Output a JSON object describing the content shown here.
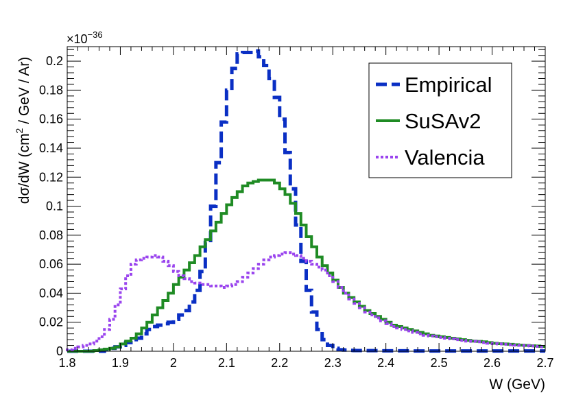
{
  "chart_data": {
    "type": "line",
    "style": "step-histogram",
    "xlabel": "W (GeV)",
    "ylabel": "dσ/dW (cm² / GeV / Ar)",
    "y_scale_label": "×10⁻³⁶",
    "xlim": [
      1.8,
      2.7
    ],
    "ylim": [
      0,
      0.21
    ],
    "x_ticks": [
      "1.8",
      "1.9",
      "2",
      "2.1",
      "2.2",
      "2.3",
      "2.4",
      "2.5",
      "2.6",
      "2.7"
    ],
    "y_ticks": [
      "0",
      "0.02",
      "0.04",
      "0.06",
      "0.08",
      "0.1",
      "0.12",
      "0.14",
      "0.16",
      "0.18",
      "0.2"
    ],
    "grid": false,
    "legend_position": "top-right",
    "x": [
      1.8,
      1.81,
      1.82,
      1.83,
      1.84,
      1.85,
      1.86,
      1.87,
      1.88,
      1.89,
      1.9,
      1.91,
      1.92,
      1.93,
      1.94,
      1.95,
      1.96,
      1.97,
      1.98,
      1.99,
      2.0,
      2.01,
      2.02,
      2.03,
      2.04,
      2.05,
      2.06,
      2.07,
      2.08,
      2.09,
      2.1,
      2.11,
      2.12,
      2.13,
      2.14,
      2.15,
      2.16,
      2.17,
      2.18,
      2.19,
      2.2,
      2.21,
      2.22,
      2.23,
      2.24,
      2.25,
      2.26,
      2.27,
      2.28,
      2.29,
      2.3,
      2.31,
      2.32,
      2.33,
      2.34,
      2.35,
      2.36,
      2.37,
      2.38,
      2.39,
      2.4,
      2.41,
      2.42,
      2.43,
      2.44,
      2.45,
      2.46,
      2.47,
      2.48,
      2.49,
      2.5,
      2.51,
      2.52,
      2.53,
      2.54,
      2.55,
      2.56,
      2.57,
      2.58,
      2.59,
      2.6,
      2.61,
      2.62,
      2.63,
      2.64,
      2.65,
      2.66,
      2.67,
      2.68,
      2.69
    ],
    "series": [
      {
        "name": "Empirical",
        "color": "#0a2fc4",
        "dash": "dashed",
        "values": [
          0,
          0,
          0,
          0,
          0,
          0,
          0,
          0.001,
          0.002,
          0.003,
          0.004,
          0.006,
          0.008,
          0.009,
          0.012,
          0.015,
          0.017,
          0.018,
          0.019,
          0.02,
          0.022,
          0.025,
          0.028,
          0.034,
          0.042,
          0.055,
          0.075,
          0.1,
          0.13,
          0.158,
          0.18,
          0.195,
          0.205,
          0.206,
          0.206,
          0.207,
          0.203,
          0.197,
          0.188,
          0.175,
          0.16,
          0.137,
          0.112,
          0.087,
          0.062,
          0.042,
          0.027,
          0.015,
          0.008,
          0.004,
          0.002,
          0.001,
          0.0008,
          0.0006,
          0.0005,
          0.0005,
          0.0004,
          0.0004,
          0.0004,
          0.0003,
          0.0003,
          0.0003,
          0.0003,
          0.0003,
          0.0003,
          0.0002,
          0.0002,
          0.0002,
          0.0002,
          0.0002,
          0.0002,
          0.0002,
          0.0002,
          0.0002,
          0.0002,
          0.0002,
          0.0002,
          0.0002,
          0.0002,
          0.0002,
          0.0002,
          0.0002,
          0.0002,
          0.0002,
          0.0002,
          0.0002,
          0.0002,
          0.0002,
          0.0002,
          0.0002
        ]
      },
      {
        "name": "SuSAv2",
        "color": "#1f8b24",
        "dash": "solid",
        "values": [
          0,
          0,
          0,
          0,
          0,
          0.0005,
          0.001,
          0.0015,
          0.002,
          0.003,
          0.005,
          0.007,
          0.009,
          0.012,
          0.016,
          0.02,
          0.025,
          0.03,
          0.035,
          0.04,
          0.046,
          0.051,
          0.056,
          0.061,
          0.066,
          0.072,
          0.077,
          0.083,
          0.089,
          0.095,
          0.101,
          0.106,
          0.11,
          0.114,
          0.116,
          0.117,
          0.118,
          0.118,
          0.118,
          0.116,
          0.112,
          0.108,
          0.102,
          0.095,
          0.087,
          0.079,
          0.072,
          0.065,
          0.059,
          0.054,
          0.049,
          0.044,
          0.04,
          0.037,
          0.034,
          0.031,
          0.028,
          0.026,
          0.024,
          0.022,
          0.02,
          0.018,
          0.017,
          0.016,
          0.015,
          0.014,
          0.013,
          0.012,
          0.011,
          0.0105,
          0.01,
          0.0095,
          0.009,
          0.0085,
          0.008,
          0.0075,
          0.007,
          0.0068,
          0.0065,
          0.006,
          0.0055,
          0.0052,
          0.005,
          0.0048,
          0.0045,
          0.0042,
          0.004,
          0.0038,
          0.0036,
          0.0033
        ]
      },
      {
        "name": "Valencia",
        "color": "#9a44ee",
        "dash": "dotted",
        "values": [
          0.001,
          0.002,
          0.003,
          0.004,
          0.005,
          0.007,
          0.01,
          0.015,
          0.022,
          0.032,
          0.043,
          0.052,
          0.06,
          0.063,
          0.064,
          0.065,
          0.066,
          0.065,
          0.062,
          0.059,
          0.055,
          0.052,
          0.05,
          0.048,
          0.047,
          0.046,
          0.046,
          0.045,
          0.045,
          0.044,
          0.045,
          0.046,
          0.048,
          0.051,
          0.054,
          0.057,
          0.06,
          0.063,
          0.065,
          0.066,
          0.067,
          0.068,
          0.067,
          0.066,
          0.064,
          0.062,
          0.06,
          0.058,
          0.056,
          0.052,
          0.048,
          0.044,
          0.04,
          0.036,
          0.033,
          0.03,
          0.027,
          0.025,
          0.023,
          0.021,
          0.019,
          0.017,
          0.016,
          0.015,
          0.014,
          0.013,
          0.012,
          0.011,
          0.0105,
          0.01,
          0.0095,
          0.009,
          0.0085,
          0.008,
          0.0075,
          0.007,
          0.0068,
          0.0065,
          0.006,
          0.0055,
          0.0052,
          0.005,
          0.0048,
          0.0045,
          0.0042,
          0.004,
          0.0038,
          0.0036,
          0.0033,
          0.003
        ]
      }
    ]
  }
}
